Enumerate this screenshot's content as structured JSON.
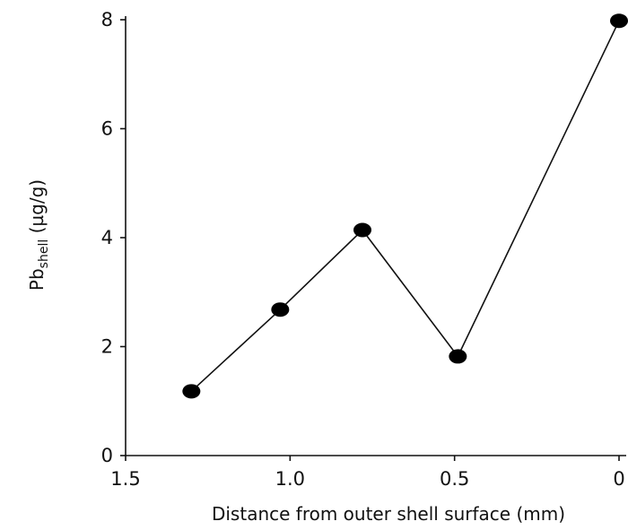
{
  "chart_data": {
    "type": "line",
    "xlabel": "Distance from outer shell surface (mm)",
    "ylabel": {
      "main": "Pb",
      "subscript": "shell",
      "unit": " (µg/g)"
    },
    "xlim": [
      1.5,
      0
    ],
    "ylim": [
      0,
      8
    ],
    "x_reversed": true,
    "x_ticks": [
      1.5,
      1.0,
      0.5,
      0
    ],
    "x_tick_labels": [
      "1.5",
      "1.0",
      "0.5",
      "0"
    ],
    "y_ticks": [
      0,
      2,
      4,
      6,
      8
    ],
    "y_tick_labels": [
      "0",
      "2",
      "4",
      "6",
      "8"
    ],
    "grid": false,
    "series": [
      {
        "x": [
          1.3,
          1.03,
          0.78,
          0.49,
          0
        ],
        "y": [
          1.18,
          2.68,
          4.14,
          1.82,
          7.98
        ]
      }
    ],
    "line_color": "#111111",
    "marker_color": "#000000"
  }
}
